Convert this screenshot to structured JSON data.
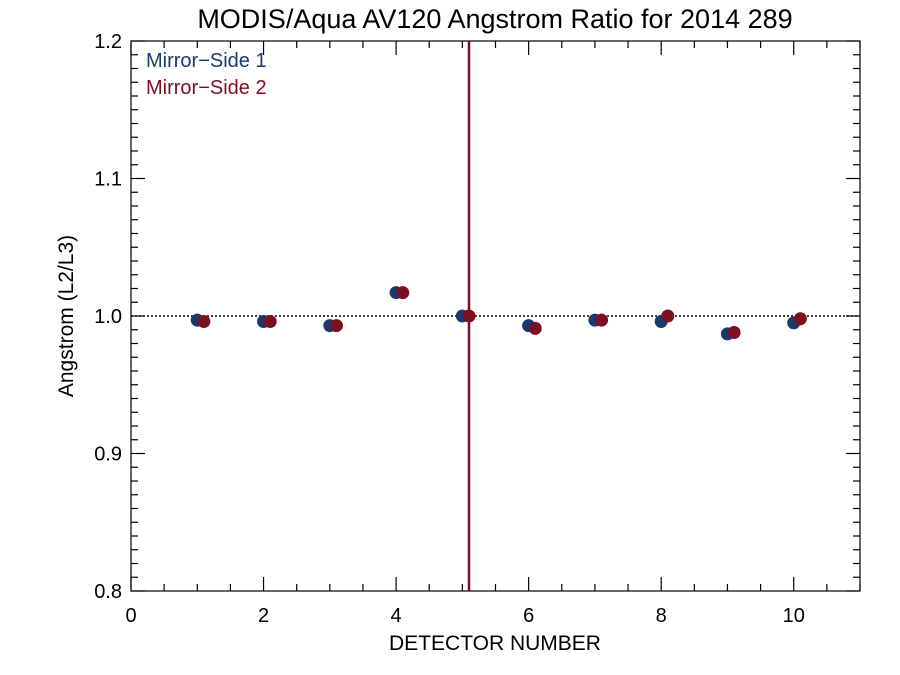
{
  "chart_data": {
    "type": "scatter",
    "title": "MODIS/Aqua AV120 Angstrom Ratio for 2014 289",
    "xlabel": "DETECTOR NUMBER",
    "ylabel": "Angstrom (L2/L3)",
    "xlim": [
      0,
      11
    ],
    "ylim": [
      0.8,
      1.2
    ],
    "x_ticks": [
      0,
      2,
      4,
      6,
      8,
      10
    ],
    "x_tick_labels": [
      "0",
      "2",
      "4",
      "6",
      "8",
      "10"
    ],
    "y_ticks": [
      0.8,
      0.9,
      1.0,
      1.1,
      1.2
    ],
    "y_tick_labels": [
      "0.8",
      "0.9",
      "1.0",
      "1.1",
      "1.2"
    ],
    "reference_line_y": 1.0,
    "vertical_line_x": 5.1,
    "vertical_line_color": "#7a1020",
    "legend_position": "top-left",
    "series": [
      {
        "name": "Mirror−Side 1",
        "color": "#1a3a6e",
        "x": [
          1,
          2,
          3,
          4,
          5,
          6,
          7,
          8,
          9,
          10
        ],
        "values": [
          0.997,
          0.996,
          0.993,
          1.017,
          1.0,
          0.993,
          0.997,
          0.996,
          0.987,
          0.995
        ]
      },
      {
        "name": "Mirror−Side 2",
        "color": "#7a1020",
        "x": [
          1.1,
          2.1,
          3.1,
          4.1,
          5.1,
          6.1,
          7.1,
          8.1,
          9.1,
          10.1
        ],
        "values": [
          0.996,
          0.996,
          0.993,
          1.017,
          1.0,
          0.991,
          0.997,
          1.0,
          0.988,
          0.998
        ]
      }
    ]
  }
}
